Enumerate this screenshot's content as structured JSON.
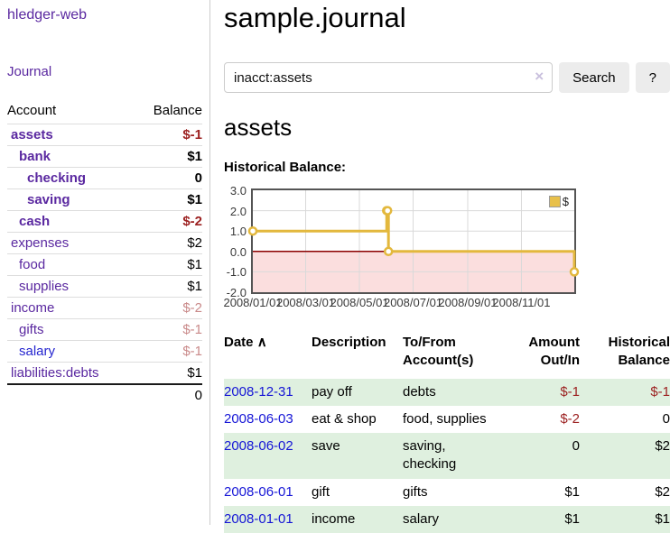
{
  "app": {
    "brand": "hledger-web"
  },
  "sidebar": {
    "journal_link": "Journal",
    "accounts": {
      "header_account": "Account",
      "header_balance": "Balance",
      "rows": [
        {
          "name": "assets",
          "balance": "$-1",
          "depth": 1,
          "bold": true,
          "blue_link": false
        },
        {
          "name": "bank",
          "balance": "$1",
          "depth": 2,
          "bold": true,
          "blue_link": false
        },
        {
          "name": "checking",
          "balance": "0",
          "depth": 3,
          "bold": true,
          "blue_link": false
        },
        {
          "name": "saving",
          "balance": "$1",
          "depth": 3,
          "bold": true,
          "blue_link": false
        },
        {
          "name": "cash",
          "balance": "$-2",
          "depth": 2,
          "bold": true,
          "blue_link": false
        },
        {
          "name": "expenses",
          "balance": "$2",
          "depth": 1,
          "bold": false,
          "blue_link": false
        },
        {
          "name": "food",
          "balance": "$1",
          "depth": 2,
          "bold": false,
          "blue_link": false
        },
        {
          "name": "supplies",
          "balance": "$1",
          "depth": 2,
          "bold": false,
          "blue_link": false
        },
        {
          "name": "income",
          "balance": "$-2",
          "depth": 1,
          "bold": false,
          "blue_link": false
        },
        {
          "name": "gifts",
          "balance": "$-1",
          "depth": 2,
          "bold": false,
          "blue_link": false
        },
        {
          "name": "salary",
          "balance": "$-1",
          "depth": 2,
          "bold": false,
          "blue_link": true
        },
        {
          "name": "liabilities:debts",
          "balance": "$1",
          "depth": 1,
          "bold": false,
          "blue_link": false
        }
      ],
      "total": "0"
    }
  },
  "main": {
    "title": "sample.journal",
    "search": {
      "value": "inacct:assets",
      "clear_icon": "×",
      "search_button": "Search",
      "help_button": "?"
    },
    "account_heading": "assets",
    "chart_heading": "Historical Balance:"
  },
  "register": {
    "headers": {
      "date": "Date",
      "sort_icon": "∧",
      "description": "Description",
      "accounts": "To/From Account(s)",
      "amount": "Amount Out/In",
      "balance": "Historical Balance"
    },
    "rows": [
      {
        "date": "2008-12-31",
        "description": "pay off",
        "accounts": "debts",
        "amount": "$-1",
        "balance": "$-1"
      },
      {
        "date": "2008-06-03",
        "description": "eat & shop",
        "accounts": "food, supplies",
        "amount": "$-2",
        "balance": "0"
      },
      {
        "date": "2008-06-02",
        "description": "save",
        "accounts": "saving, checking",
        "amount": "0",
        "balance": "$2"
      },
      {
        "date": "2008-06-01",
        "description": "gift",
        "accounts": "gifts",
        "amount": "$1",
        "balance": "$2"
      },
      {
        "date": "2008-01-01",
        "description": "income",
        "accounts": "salary",
        "amount": "$1",
        "balance": "$1"
      }
    ]
  },
  "chart_data": {
    "type": "line",
    "step": true,
    "title": "Historical Balance:",
    "series": [
      {
        "name": "$",
        "points": [
          [
            "2008-01-01",
            1
          ],
          [
            "2008-06-01",
            2
          ],
          [
            "2008-06-02",
            2
          ],
          [
            "2008-06-03",
            0
          ],
          [
            "2008-12-31",
            -1
          ]
        ]
      }
    ],
    "x_ticks": [
      "2008/01/01",
      "2008/03/01",
      "2008/05/01",
      "2008/07/01",
      "2008/09/01",
      "2008/11/01"
    ],
    "y_ticks": [
      "3.0",
      "2.0",
      "1.0",
      "0.0",
      "-1.0",
      "-2.0"
    ],
    "xlim": [
      "2008-01-01",
      "2008-12-31"
    ],
    "ylim": [
      -2,
      3
    ],
    "legend": [
      {
        "label": "$",
        "color": "#e8c04a"
      }
    ],
    "colors": {
      "line": "#e3b83d",
      "marker_fill": "#ffffff",
      "negative_fill": "#fbdede",
      "zero_line": "#8b0000",
      "grid": "#d9d9d9",
      "border": "#545454"
    }
  }
}
